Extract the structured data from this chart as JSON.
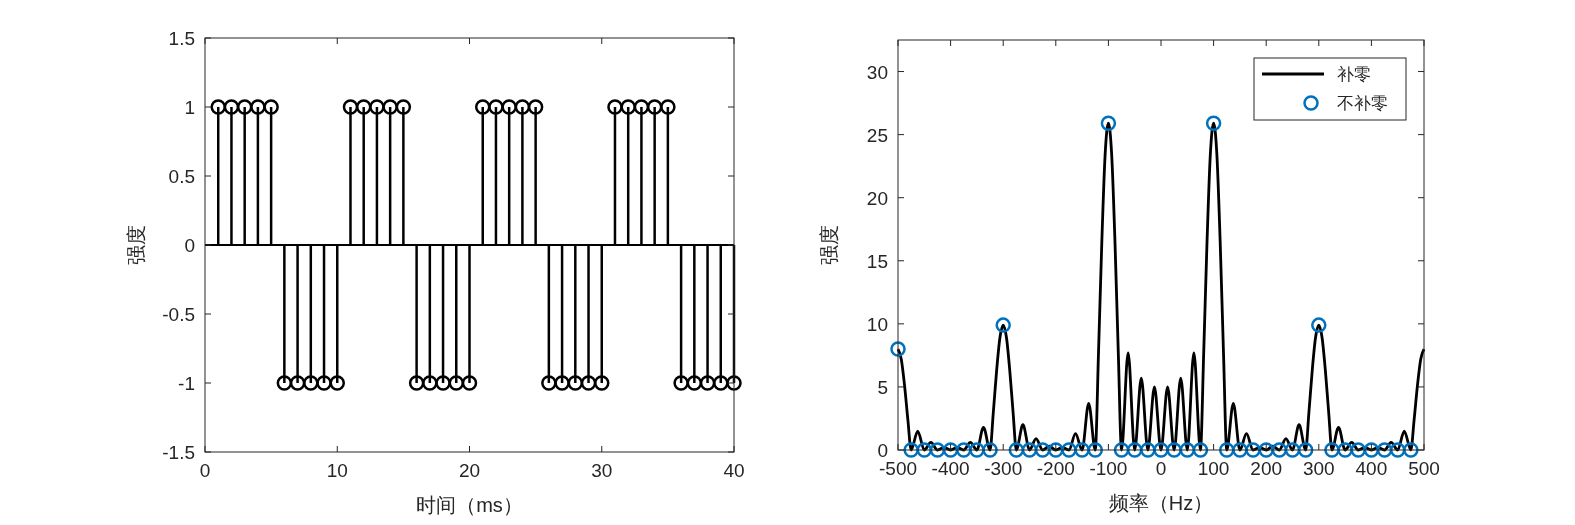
{
  "chart_data": [
    {
      "type": "lollipop",
      "xlabel": "时间（ms）",
      "ylabel": "强度",
      "color": "#000000",
      "marker": "circle",
      "x": [
        1,
        2,
        3,
        4,
        5,
        6,
        7,
        8,
        9,
        10,
        11,
        12,
        13,
        14,
        15,
        16,
        17,
        18,
        19,
        20,
        21,
        22,
        23,
        24,
        25,
        26,
        27,
        28,
        29,
        30,
        31,
        32,
        33,
        34,
        35,
        36,
        37,
        38,
        39,
        40
      ],
      "values": [
        1,
        1,
        1,
        1,
        1,
        -1,
        -1,
        -1,
        -1,
        -1,
        1,
        1,
        1,
        1,
        1,
        -1,
        -1,
        -1,
        -1,
        -1,
        1,
        1,
        1,
        1,
        1,
        -1,
        -1,
        -1,
        -1,
        -1,
        1,
        1,
        1,
        1,
        1,
        -1,
        -1,
        -1,
        -1,
        -1
      ],
      "xlim": [
        0,
        40
      ],
      "xticks": [
        0,
        10,
        20,
        30,
        40
      ],
      "ylim": [
        -1.5,
        1.5
      ],
      "yticks": [
        -1.5,
        -1,
        -0.5,
        0,
        0.5,
        1,
        1.5
      ]
    },
    {
      "type": "line",
      "xlabel": "频率（Hz）",
      "ylabel": "强度",
      "legend": "top right",
      "xlim": [
        -500,
        500
      ],
      "xticks": [
        -500,
        -400,
        -300,
        -200,
        -100,
        0,
        100,
        200,
        300,
        400,
        500
      ],
      "ylim": [
        0,
        32.5
      ],
      "yticks": [
        0,
        5,
        10,
        15,
        20,
        25,
        30
      ],
      "series": [
        {
          "name": "补零",
          "color": "#000000",
          "x": [
            -500,
            -493.75,
            -487.5,
            -481.25,
            -475,
            -462.5,
            -450,
            -437.5,
            -425,
            -412.5,
            -400,
            -387.5,
            -375,
            -362.5,
            -350,
            -337.5,
            -325,
            -318.75,
            -312.5,
            -306.25,
            -300,
            -293.75,
            -287.5,
            -281.25,
            -275,
            -262.5,
            -250,
            -237.5,
            -225,
            -212.5,
            -200,
            -187.5,
            -175,
            -162.5,
            -150,
            -137.5,
            -125,
            -118.75,
            -112.5,
            -106.25,
            -100,
            -93.75,
            -87.5,
            -81.25,
            -75,
            -62.5,
            -50,
            -37.5,
            -25,
            -12.5,
            0,
            12.5,
            25,
            37.5,
            50,
            62.5,
            75,
            81.25,
            87.5,
            93.75,
            100,
            106.25,
            112.5,
            118.75,
            125,
            137.5,
            150,
            162.5,
            175,
            187.5,
            200,
            212.5,
            225,
            237.5,
            250,
            262.5,
            275,
            281.25,
            287.5,
            293.75,
            300,
            306.25,
            312.5,
            318.75,
            325,
            337.5,
            350,
            362.5,
            375,
            387.5,
            400,
            412.5,
            425,
            437.5,
            450,
            462.5,
            475,
            481.25,
            487.5,
            493.75,
            500
          ],
          "values": [
            8.0,
            7.2,
            5.1,
            2.4,
            0,
            1.5,
            0,
            0.6,
            0,
            0.2,
            0,
            0.2,
            0,
            0.6,
            0,
            1.8,
            0,
            3.0,
            6.3,
            8.9,
            9.9,
            8.9,
            6.3,
            3.0,
            0,
            2.0,
            0,
            0.9,
            0,
            0.3,
            0,
            0.2,
            0,
            1.3,
            0,
            3.7,
            0,
            7.8,
            16.5,
            23.4,
            25.9,
            23.4,
            16.5,
            7.8,
            0,
            7.7,
            0,
            5.7,
            0,
            5.0,
            0,
            5.0,
            0,
            5.7,
            0,
            7.7,
            0,
            7.8,
            16.5,
            23.4,
            25.9,
            23.4,
            16.5,
            7.8,
            0,
            3.7,
            0,
            1.3,
            0,
            0.2,
            0,
            0.3,
            0,
            0.9,
            0,
            2.0,
            0,
            3.0,
            6.3,
            8.9,
            9.9,
            8.9,
            6.3,
            3.0,
            0,
            1.8,
            0,
            0.6,
            0,
            0.2,
            0,
            0.2,
            0,
            0.6,
            0,
            1.5,
            0,
            2.4,
            5.1,
            7.2,
            8.0
          ]
        },
        {
          "name": "不补零",
          "type": "scatter",
          "color": "#0072bd",
          "marker": "circle",
          "x": [
            -500,
            -475,
            -450,
            -425,
            -400,
            -375,
            -350,
            -325,
            -300,
            -275,
            -250,
            -225,
            -200,
            -175,
            -150,
            -125,
            -100,
            -75,
            -50,
            -25,
            0,
            25,
            50,
            75,
            100,
            125,
            150,
            175,
            200,
            225,
            250,
            275,
            300,
            325,
            350,
            375,
            400,
            425,
            450,
            475
          ],
          "values": [
            8.0,
            0,
            0,
            0,
            0,
            0,
            0,
            0,
            9.9,
            0,
            0,
            0,
            0,
            0,
            0,
            0,
            25.9,
            0,
            0,
            0,
            0,
            0,
            0,
            0,
            25.9,
            0,
            0,
            0,
            0,
            0,
            0,
            0,
            9.9,
            0,
            0,
            0,
            0,
            0,
            0,
            0
          ]
        }
      ]
    }
  ]
}
